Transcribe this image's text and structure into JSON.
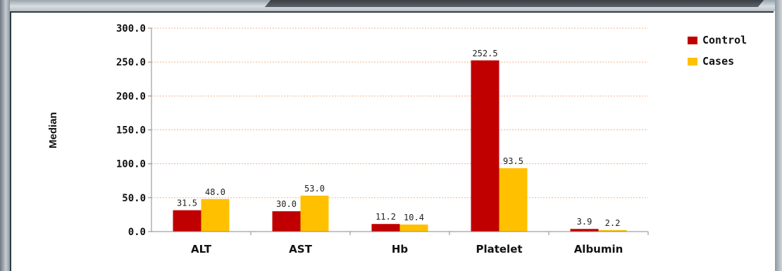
{
  "chart_data": {
    "type": "bar",
    "categories": [
      "ALT",
      "AST",
      "Hb",
      "Platelet",
      "Albumin"
    ],
    "series": [
      {
        "name": "Control",
        "values": [
          31.5,
          30.0,
          11.2,
          252.5,
          3.9
        ],
        "labels": [
          "31.5",
          "30.0",
          "11.2",
          "252.5",
          "3.9"
        ]
      },
      {
        "name": "Cases",
        "values": [
          48.0,
          53.0,
          10.4,
          93.5,
          2.2
        ],
        "labels": [
          "48.0",
          "53.0",
          "10.4",
          "93.5",
          "2.2"
        ]
      }
    ],
    "colors": {
      "Control": "#c00000",
      "Cases": "#ffc000"
    },
    "ylabel": "Median",
    "ylim": [
      0,
      300
    ],
    "yticks": [
      "0.0",
      "50.0",
      "100.0",
      "150.0",
      "200.0",
      "250.0",
      "300.0"
    ],
    "grid": true,
    "legend_position": "top-right"
  }
}
